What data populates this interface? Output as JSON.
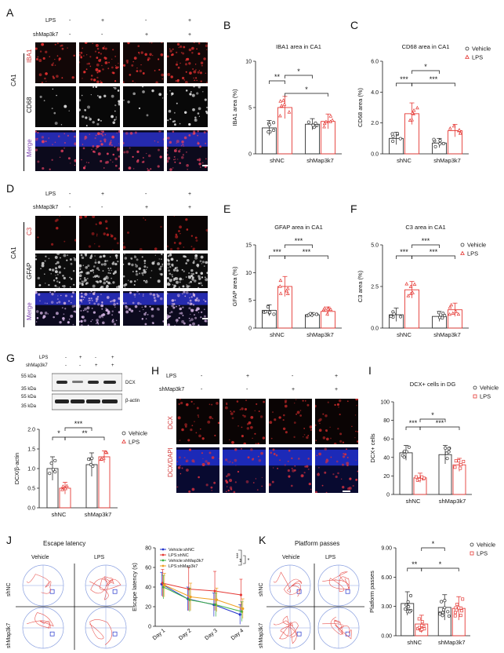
{
  "panel_letters": [
    "A",
    "B",
    "C",
    "D",
    "E",
    "F",
    "G",
    "H",
    "I",
    "J",
    "K"
  ],
  "panelA": {
    "row_labels": [
      "LPS",
      "shMap3k7"
    ],
    "LPS": [
      "-",
      "+",
      "-",
      "+"
    ],
    "shMap3k7": [
      "-",
      "-",
      "+",
      "+"
    ],
    "region": "CA1",
    "channels": [
      "IBA1",
      "CD68",
      "Merge"
    ],
    "colors": {
      "IBA1": "#d23a3a",
      "CD68": "#222222",
      "Merge": "#7a3fb0"
    }
  },
  "panelD": {
    "row_labels": [
      "LPS",
      "shMap3k7"
    ],
    "LPS": [
      "-",
      "+",
      "-",
      "+"
    ],
    "shMap3k7": [
      "-",
      "-",
      "+",
      "+"
    ],
    "region": "CA1",
    "channels": [
      "C3",
      "GFAP",
      "Merge"
    ]
  },
  "panelG": {
    "row_labels": [
      "LPS",
      "shMap3k7"
    ],
    "LPS": [
      "-",
      "+",
      "-",
      "+"
    ],
    "shMap3k7": [
      "-",
      "-",
      "+",
      "+"
    ],
    "markers": [
      "55 kDa",
      "35 kDa",
      "55 kDa",
      "35 kDa"
    ],
    "bands": [
      "DCX",
      "β-actin"
    ]
  },
  "panelH": {
    "row_labels": [
      "LPS",
      "shMap3k7"
    ],
    "LPS": [
      "-",
      "+",
      "-",
      "+"
    ],
    "shMap3k7": [
      "-",
      "-",
      "+",
      "+"
    ],
    "channels": [
      "DCX",
      "DCX/DAPI"
    ]
  },
  "panelJ": {
    "title": "Escape latency",
    "conditions": [
      "Vehicle",
      "LPS"
    ],
    "rows": [
      "shNC",
      "shMap3k7"
    ]
  },
  "panelK": {
    "title": "Platform passes",
    "conditions": [
      "Vehicle",
      "LPS"
    ],
    "rows": [
      "shNC",
      "shMap3k7"
    ]
  },
  "legend_group": [
    "Vehicle",
    "LPS"
  ],
  "colors": {
    "vehicle": "#333333",
    "lps": "#e53935",
    "blue": "#2233cc",
    "green": "#3cb043",
    "orange": "#f0a020"
  },
  "chart_data": [
    {
      "id": "B",
      "type": "bar",
      "title": "IBA1 area in CA1",
      "ylabel": "IBA1 area (%)",
      "ylim": [
        0,
        10
      ],
      "yticks": [
        0,
        5,
        10
      ],
      "categories": [
        "shNC",
        "shMap3k7"
      ],
      "series": [
        {
          "name": "Vehicle",
          "values": [
            2.8,
            3.2
          ],
          "sd": [
            0.8,
            0.6
          ]
        },
        {
          "name": "LPS",
          "values": [
            5.0,
            3.5
          ],
          "sd": [
            1.2,
            0.8
          ]
        }
      ],
      "significance": [
        "**",
        "*",
        "*"
      ]
    },
    {
      "id": "C",
      "type": "bar",
      "title": "CD68 area in CA1",
      "ylabel": "CD68 area (%)",
      "ylim": [
        0,
        6
      ],
      "yticks": [
        0.0,
        2.0,
        4.0,
        6.0
      ],
      "categories": [
        "shNC",
        "shMap3k7"
      ],
      "series": [
        {
          "name": "Vehicle",
          "values": [
            1.0,
            0.7
          ],
          "sd": [
            0.4,
            0.3
          ]
        },
        {
          "name": "LPS",
          "values": [
            2.6,
            1.5
          ],
          "sd": [
            0.7,
            0.4
          ]
        }
      ],
      "significance": [
        "***",
        "***",
        "*"
      ],
      "legend": "right"
    },
    {
      "id": "E",
      "type": "bar",
      "title": "GFAP area in CA1",
      "ylabel": "GFAP area (%)",
      "ylim": [
        0,
        15
      ],
      "yticks": [
        0,
        5,
        10,
        15
      ],
      "categories": [
        "shNC",
        "shMap3k7"
      ],
      "series": [
        {
          "name": "Vehicle",
          "values": [
            3.2,
            2.4
          ],
          "sd": [
            1.0,
            0.4
          ]
        },
        {
          "name": "LPS",
          "values": [
            7.5,
            3.0
          ],
          "sd": [
            1.8,
            0.8
          ]
        }
      ],
      "significance": [
        "***",
        "***",
        "***"
      ]
    },
    {
      "id": "F",
      "type": "bar",
      "title": "C3 area in CA1",
      "ylabel": "C3 area (%)",
      "ylim": [
        0,
        5
      ],
      "yticks": [
        0.0,
        2.5,
        5.0
      ],
      "categories": [
        "shNC",
        "shMap3k7"
      ],
      "series": [
        {
          "name": "Vehicle",
          "values": [
            0.8,
            0.7
          ],
          "sd": [
            0.4,
            0.3
          ]
        },
        {
          "name": "LPS",
          "values": [
            2.3,
            1.1
          ],
          "sd": [
            0.5,
            0.4
          ]
        }
      ],
      "significance": [
        "***",
        "***",
        "***"
      ],
      "legend": "right"
    },
    {
      "id": "G",
      "type": "bar",
      "title": "",
      "ylabel": "DCX/β-actin",
      "ylim": [
        0,
        2.0
      ],
      "yticks": [
        0.0,
        0.5,
        1.0,
        1.5,
        2.0
      ],
      "categories": [
        "shNC",
        "shMap3k7"
      ],
      "series": [
        {
          "name": "Vehicle",
          "values": [
            1.0,
            1.1
          ],
          "sd": [
            0.3,
            0.3
          ]
        },
        {
          "name": "LPS",
          "values": [
            0.5,
            1.3
          ],
          "sd": [
            0.15,
            0.15
          ]
        }
      ],
      "significance": [
        "*",
        "**",
        "***"
      ],
      "legend": "right"
    },
    {
      "id": "I",
      "type": "bar",
      "title": "DCX+ cells in DG",
      "ylabel": "DCX+ cells",
      "ylim": [
        0,
        100
      ],
      "yticks": [
        0,
        20,
        40,
        60,
        80,
        100
      ],
      "categories": [
        "shNC",
        "shMap3k7"
      ],
      "series": [
        {
          "name": "Vehicle",
          "values": [
            45,
            43
          ],
          "sd": [
            8,
            10
          ]
        },
        {
          "name": "LPS",
          "values": [
            18,
            32
          ],
          "sd": [
            5,
            7
          ]
        }
      ],
      "significance": [
        "***",
        "***",
        "*"
      ],
      "legend": "right"
    },
    {
      "id": "J",
      "type": "line",
      "title": "",
      "ylabel": "Escape latency (s)",
      "ylim": [
        0,
        80
      ],
      "yticks": [
        0,
        20,
        40,
        60,
        80
      ],
      "x": [
        "Day 1",
        "Day 2",
        "Day 3",
        "Day 4"
      ],
      "series": [
        {
          "name": "Vehicle:shNC",
          "values": [
            43,
            28,
            22,
            12
          ],
          "sd": [
            12,
            12,
            12,
            10
          ]
        },
        {
          "name": "LPS:shNC",
          "values": [
            44,
            38,
            36,
            32
          ],
          "sd": [
            14,
            22,
            20,
            16
          ]
        },
        {
          "name": "Vehicle:shMap3k7",
          "values": [
            40,
            27,
            22,
            15
          ],
          "sd": [
            12,
            12,
            12,
            10
          ]
        },
        {
          "name": "LPS:shMap3k7",
          "values": [
            42,
            30,
            27,
            18
          ],
          "sd": [
            12,
            14,
            12,
            10
          ]
        }
      ],
      "significance": [
        "***",
        "**",
        "*"
      ],
      "legend": "top-left"
    },
    {
      "id": "K",
      "type": "bar",
      "title": "",
      "ylabel": "Platform passes",
      "ylim": [
        0,
        9
      ],
      "yticks": [
        0.0,
        3.0,
        6.0,
        9.0
      ],
      "categories": [
        "shNC",
        "shMap3k7"
      ],
      "series": [
        {
          "name": "Vehicle",
          "values": [
            3.3,
            2.9
          ],
          "sd": [
            1.2,
            1.3
          ]
        },
        {
          "name": "LPS",
          "values": [
            1.2,
            2.8
          ],
          "sd": [
            0.9,
            1.2
          ]
        }
      ],
      "significance": [
        "**",
        "*",
        "*"
      ],
      "legend": "right"
    }
  ]
}
